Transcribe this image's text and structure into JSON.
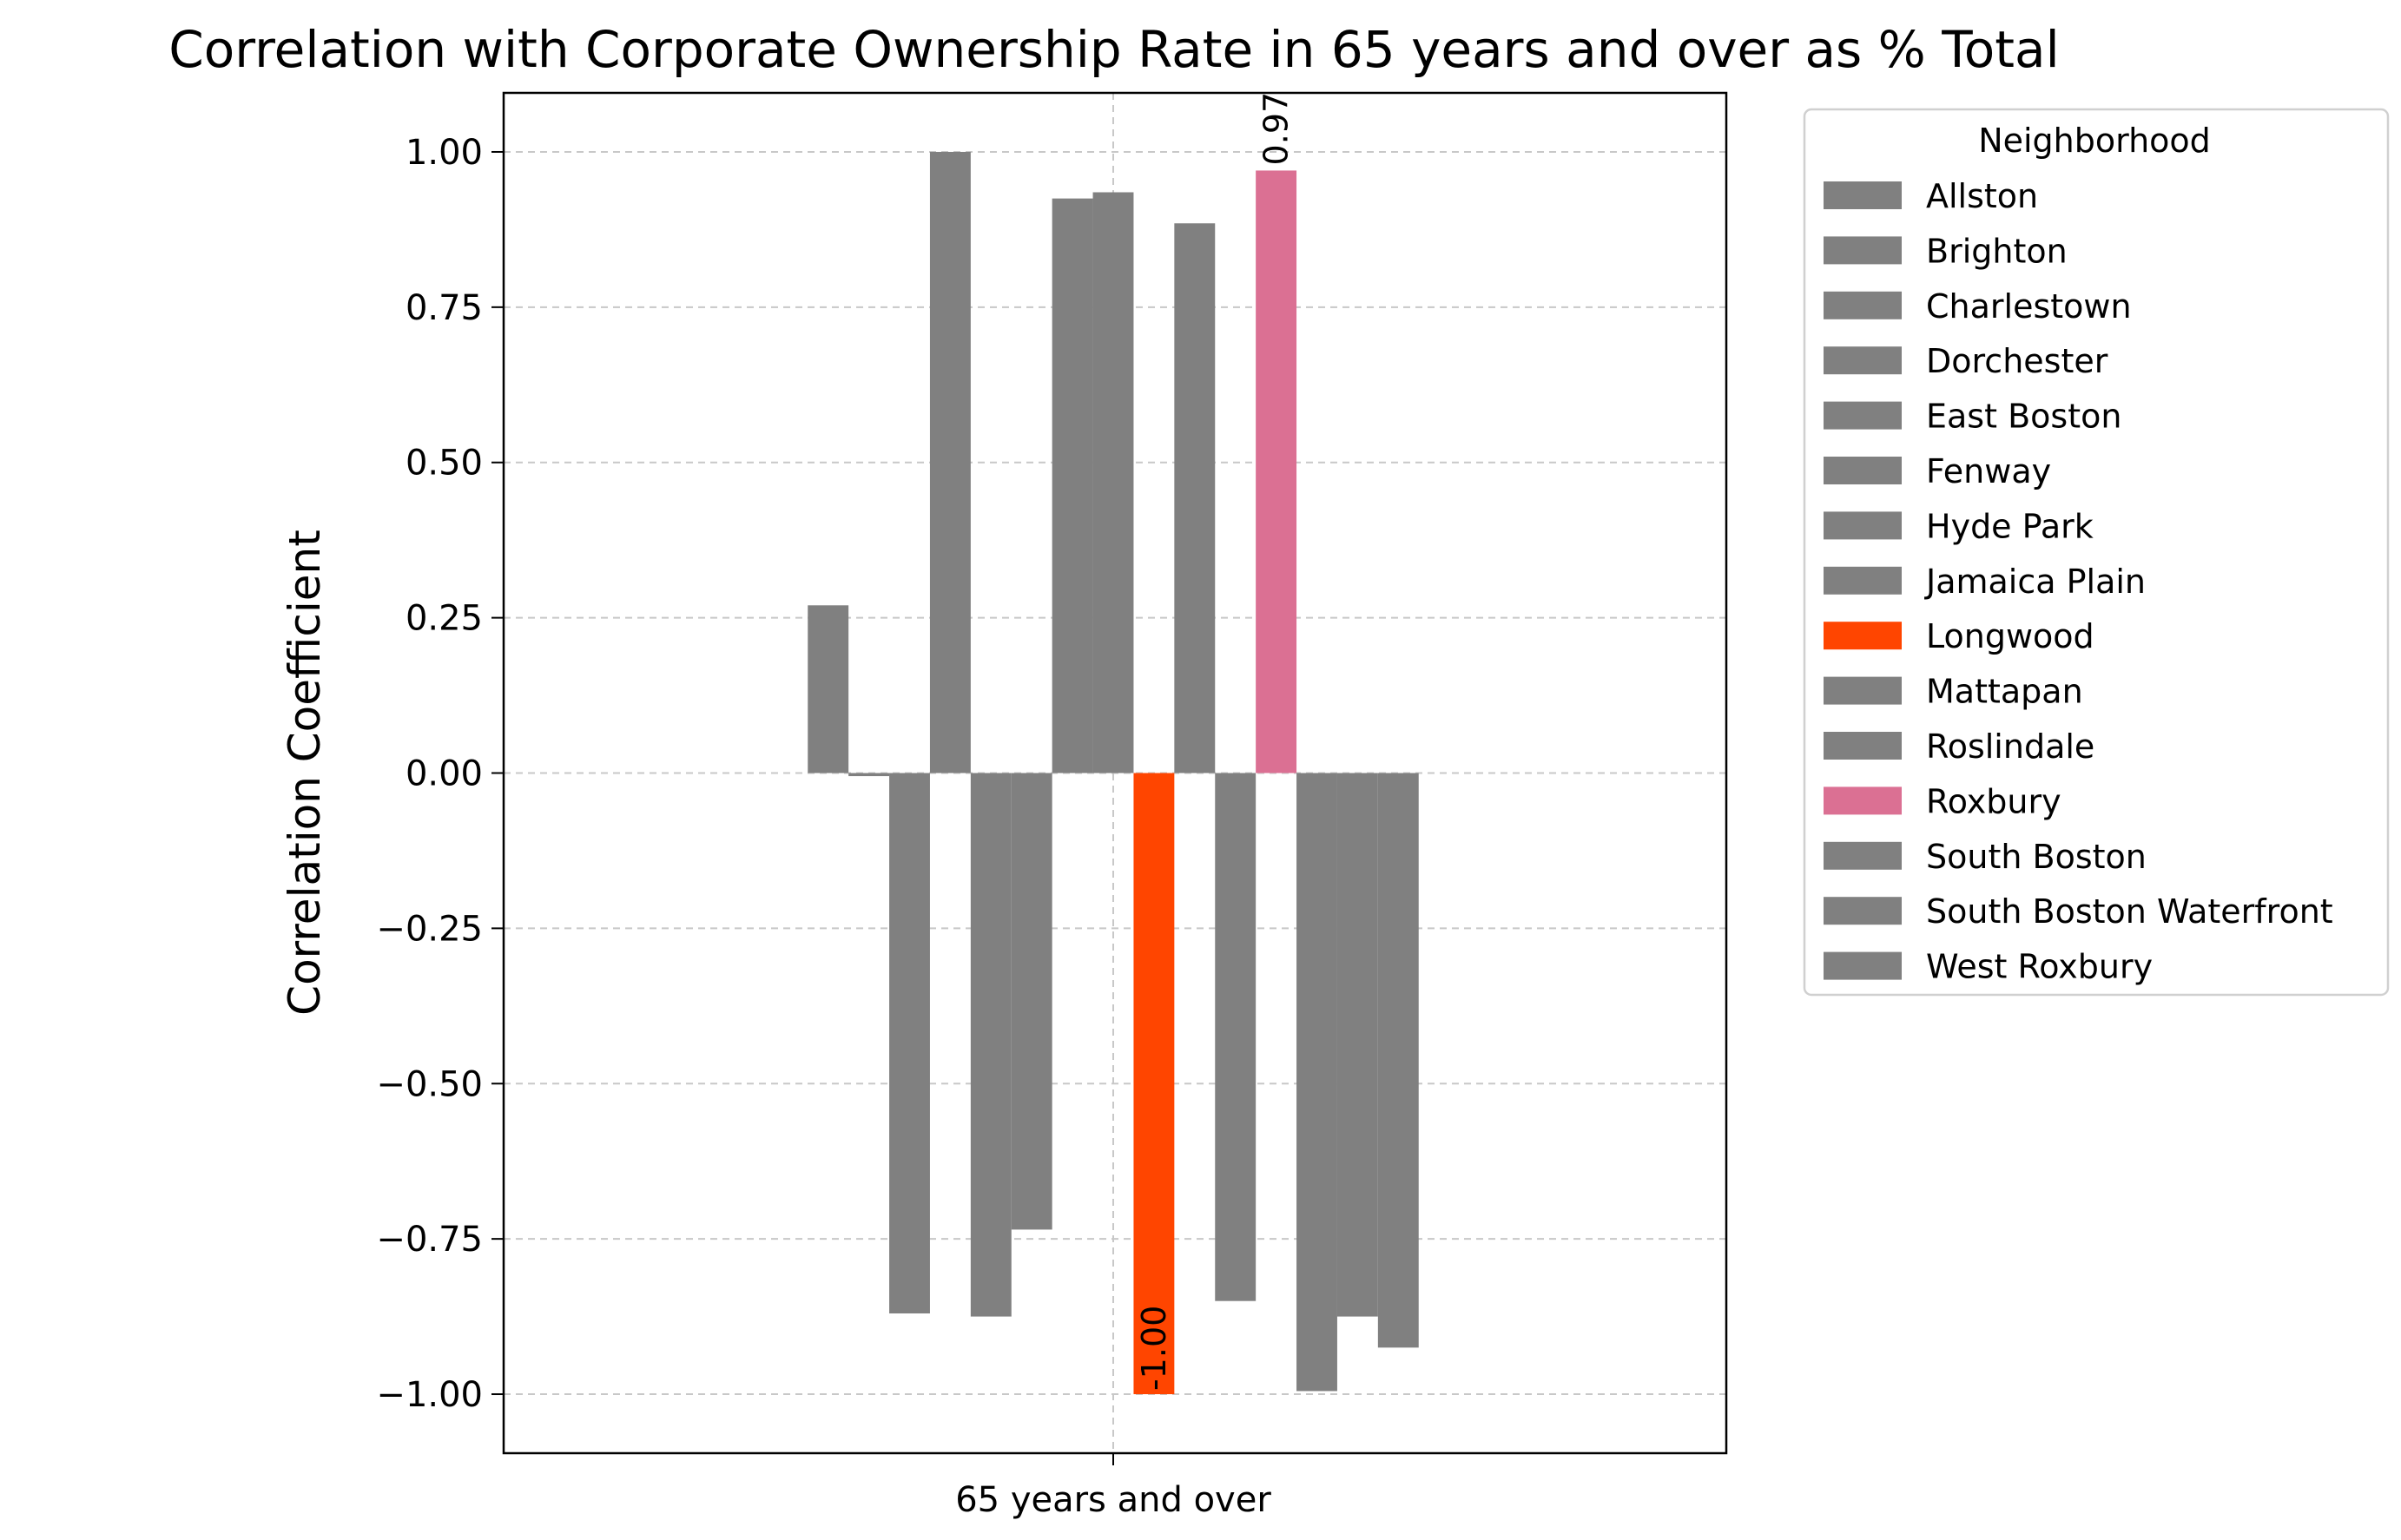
{
  "chart_data": {
    "type": "bar",
    "title": "Correlation with Corporate Ownership Rate in 65 years and over as % Total",
    "xlabel": "",
    "ylabel": "Correlation Coefficient",
    "categories": [
      "65 years and over"
    ],
    "ylim": [
      -1.095,
      1.095
    ],
    "yticks": [
      {
        "value": 1.0,
        "label": "1.00"
      },
      {
        "value": 0.75,
        "label": "0.75"
      },
      {
        "value": 0.5,
        "label": "0.50"
      },
      {
        "value": 0.25,
        "label": "0.25"
      },
      {
        "value": 0.0,
        "label": "0.00"
      },
      {
        "value": -0.25,
        "label": "−0.25"
      },
      {
        "value": -0.5,
        "label": "−0.50"
      },
      {
        "value": -0.75,
        "label": "−0.75"
      },
      {
        "value": -1.0,
        "label": "−1.00"
      }
    ],
    "grid": true,
    "legend_title": "Neighborhood",
    "legend_position": "outside-right",
    "series": [
      {
        "name": "Allston",
        "values": [
          0.27
        ],
        "color": "#808080"
      },
      {
        "name": "Brighton",
        "values": [
          -0.005
        ],
        "color": "#808080"
      },
      {
        "name": "Charlestown",
        "values": [
          -0.87
        ],
        "color": "#808080"
      },
      {
        "name": "Dorchester",
        "values": [
          1.0
        ],
        "color": "#808080"
      },
      {
        "name": "East Boston",
        "values": [
          -0.875
        ],
        "color": "#808080"
      },
      {
        "name": "Fenway",
        "values": [
          -0.735
        ],
        "color": "#808080"
      },
      {
        "name": "Hyde Park",
        "values": [
          0.925
        ],
        "color": "#808080"
      },
      {
        "name": "Jamaica Plain",
        "values": [
          0.935
        ],
        "color": "#808080"
      },
      {
        "name": "Longwood",
        "values": [
          -1.0
        ],
        "color": "#ff4500",
        "label": "-1.00"
      },
      {
        "name": "Mattapan",
        "values": [
          0.885
        ],
        "color": "#808080"
      },
      {
        "name": "Roslindale",
        "values": [
          -0.85
        ],
        "color": "#808080"
      },
      {
        "name": "Roxbury",
        "values": [
          0.97
        ],
        "color": "#db7093",
        "label": "0.97"
      },
      {
        "name": "South Boston",
        "values": [
          -0.995
        ],
        "color": "#808080"
      },
      {
        "name": "South Boston Waterfront",
        "values": [
          -0.875
        ],
        "color": "#808080"
      },
      {
        "name": "West Roxbury",
        "values": [
          -0.925
        ],
        "color": "#808080"
      }
    ]
  }
}
